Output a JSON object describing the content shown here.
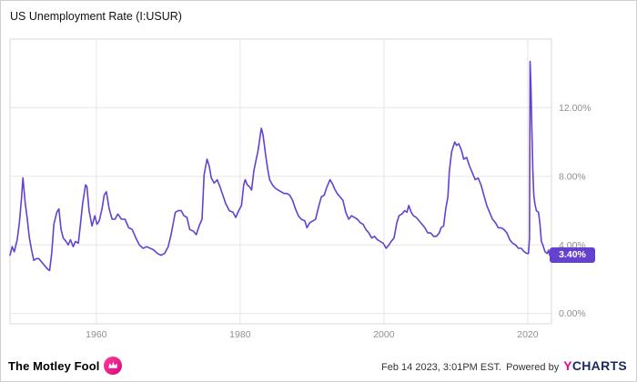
{
  "header": {
    "title": "US Unemployment Rate (I:USUR)"
  },
  "footer": {
    "brand": "The Motley Fool",
    "timestamp": "Feb 14 2023, 3:01PM EST.",
    "powered_by": "Powered by",
    "ycharts_y": "Y",
    "ycharts_rest": "CHARTS"
  },
  "colors": {
    "line": "#6442CF",
    "badge_bg": "#6442CF",
    "grid": "#e6e6e6",
    "plot_border": "#d9d9d9",
    "tick_text": "#8f8f8f",
    "brand_pink": "#d8067e",
    "ycharts_navy": "#1b2a5e"
  },
  "chart_data": {
    "type": "line",
    "title": "US Unemployment Rate (I:USUR)",
    "series_name": "US Unemployment Rate",
    "unit": "%",
    "xlabel": "",
    "ylabel": "",
    "xlim": [
      1948,
      2023.3
    ],
    "ylim": [
      -0.6,
      16
    ],
    "x_ticks": [
      1960,
      1980,
      2000,
      2020
    ],
    "x_tick_labels": [
      "1960",
      "1980",
      "2000",
      "2020"
    ],
    "y_ticks": [
      0,
      4,
      8,
      12
    ],
    "y_tick_labels": [
      "0.00%",
      "4.00%",
      "8.00%",
      "12.00%"
    ],
    "grid": true,
    "legend": "none",
    "line_color": "#6442CF",
    "last_value": 3.4,
    "last_value_label": "3.40%",
    "points": [
      [
        1948.0,
        3.4
      ],
      [
        1948.3,
        3.9
      ],
      [
        1948.6,
        3.6
      ],
      [
        1949.0,
        4.3
      ],
      [
        1949.3,
        5.3
      ],
      [
        1949.6,
        6.7
      ],
      [
        1949.8,
        7.9
      ],
      [
        1950.1,
        6.5
      ],
      [
        1950.4,
        5.5
      ],
      [
        1950.7,
        4.4
      ],
      [
        1951.0,
        3.7
      ],
      [
        1951.3,
        3.1
      ],
      [
        1951.7,
        3.2
      ],
      [
        1952.0,
        3.2
      ],
      [
        1952.4,
        3.0
      ],
      [
        1952.8,
        2.8
      ],
      [
        1953.2,
        2.6
      ],
      [
        1953.5,
        2.5
      ],
      [
        1953.8,
        3.5
      ],
      [
        1954.1,
        5.2
      ],
      [
        1954.5,
        5.9
      ],
      [
        1954.8,
        6.1
      ],
      [
        1955.1,
        4.9
      ],
      [
        1955.4,
        4.4
      ],
      [
        1955.8,
        4.2
      ],
      [
        1956.1,
        4.0
      ],
      [
        1956.4,
        4.3
      ],
      [
        1956.8,
        3.9
      ],
      [
        1957.1,
        4.2
      ],
      [
        1957.5,
        4.1
      ],
      [
        1957.8,
        5.2
      ],
      [
        1958.1,
        6.4
      ],
      [
        1958.5,
        7.5
      ],
      [
        1958.7,
        7.4
      ],
      [
        1959.0,
        6.0
      ],
      [
        1959.4,
        5.1
      ],
      [
        1959.8,
        5.7
      ],
      [
        1960.1,
        5.2
      ],
      [
        1960.4,
        5.4
      ],
      [
        1960.8,
        6.1
      ],
      [
        1961.1,
        6.9
      ],
      [
        1961.4,
        7.1
      ],
      [
        1961.8,
        6.1
      ],
      [
        1962.2,
        5.5
      ],
      [
        1962.6,
        5.5
      ],
      [
        1963.0,
        5.8
      ],
      [
        1963.5,
        5.5
      ],
      [
        1964.0,
        5.5
      ],
      [
        1964.5,
        5.0
      ],
      [
        1965.0,
        4.9
      ],
      [
        1965.5,
        4.4
      ],
      [
        1966.0,
        4.0
      ],
      [
        1966.5,
        3.8
      ],
      [
        1967.0,
        3.9
      ],
      [
        1967.5,
        3.8
      ],
      [
        1968.0,
        3.7
      ],
      [
        1968.5,
        3.5
      ],
      [
        1969.0,
        3.4
      ],
      [
        1969.5,
        3.5
      ],
      [
        1970.0,
        3.9
      ],
      [
        1970.4,
        4.6
      ],
      [
        1970.8,
        5.5
      ],
      [
        1971.0,
        5.9
      ],
      [
        1971.4,
        6.0
      ],
      [
        1971.8,
        6.0
      ],
      [
        1972.2,
        5.7
      ],
      [
        1972.6,
        5.6
      ],
      [
        1973.0,
        4.9
      ],
      [
        1973.5,
        4.8
      ],
      [
        1973.9,
        4.6
      ],
      [
        1974.3,
        5.1
      ],
      [
        1974.7,
        5.5
      ],
      [
        1975.0,
        8.1
      ],
      [
        1975.4,
        9.0
      ],
      [
        1975.7,
        8.6
      ],
      [
        1976.0,
        7.9
      ],
      [
        1976.4,
        7.6
      ],
      [
        1976.8,
        7.8
      ],
      [
        1977.2,
        7.4
      ],
      [
        1977.6,
        6.9
      ],
      [
        1978.0,
        6.4
      ],
      [
        1978.5,
        6.0
      ],
      [
        1979.0,
        5.9
      ],
      [
        1979.4,
        5.6
      ],
      [
        1979.8,
        6.0
      ],
      [
        1980.2,
        6.3
      ],
      [
        1980.5,
        7.5
      ],
      [
        1980.7,
        7.8
      ],
      [
        1981.0,
        7.5
      ],
      [
        1981.3,
        7.4
      ],
      [
        1981.6,
        7.2
      ],
      [
        1981.9,
        8.3
      ],
      [
        1982.2,
        8.9
      ],
      [
        1982.5,
        9.5
      ],
      [
        1982.8,
        10.4
      ],
      [
        1982.95,
        10.8
      ],
      [
        1983.2,
        10.4
      ],
      [
        1983.5,
        9.4
      ],
      [
        1983.8,
        8.5
      ],
      [
        1984.1,
        7.8
      ],
      [
        1984.5,
        7.5
      ],
      [
        1984.9,
        7.3
      ],
      [
        1985.3,
        7.2
      ],
      [
        1985.7,
        7.1
      ],
      [
        1986.1,
        7.0
      ],
      [
        1986.5,
        7.0
      ],
      [
        1986.9,
        6.9
      ],
      [
        1987.3,
        6.6
      ],
      [
        1987.7,
        6.1
      ],
      [
        1988.1,
        5.7
      ],
      [
        1988.5,
        5.5
      ],
      [
        1989.0,
        5.4
      ],
      [
        1989.3,
        5.0
      ],
      [
        1989.7,
        5.3
      ],
      [
        1990.1,
        5.4
      ],
      [
        1990.5,
        5.5
      ],
      [
        1990.9,
        6.2
      ],
      [
        1991.3,
        6.8
      ],
      [
        1991.7,
        6.9
      ],
      [
        1992.0,
        7.3
      ],
      [
        1992.5,
        7.8
      ],
      [
        1992.8,
        7.6
      ],
      [
        1993.1,
        7.3
      ],
      [
        1993.5,
        7.0
      ],
      [
        1993.9,
        6.8
      ],
      [
        1994.3,
        6.6
      ],
      [
        1994.7,
        5.9
      ],
      [
        1995.1,
        5.5
      ],
      [
        1995.5,
        5.7
      ],
      [
        1995.9,
        5.6
      ],
      [
        1996.3,
        5.5
      ],
      [
        1996.7,
        5.3
      ],
      [
        1997.1,
        5.2
      ],
      [
        1997.5,
        4.9
      ],
      [
        1997.9,
        4.7
      ],
      [
        1998.3,
        4.4
      ],
      [
        1998.7,
        4.5
      ],
      [
        1999.1,
        4.3
      ],
      [
        1999.5,
        4.2
      ],
      [
        1999.9,
        4.1
      ],
      [
        2000.3,
        3.8
      ],
      [
        2000.7,
        4.0
      ],
      [
        2001.0,
        4.2
      ],
      [
        2001.4,
        4.4
      ],
      [
        2001.8,
        5.3
      ],
      [
        2002.1,
        5.7
      ],
      [
        2002.5,
        5.8
      ],
      [
        2002.9,
        6.0
      ],
      [
        2003.2,
        5.9
      ],
      [
        2003.45,
        6.3
      ],
      [
        2003.8,
        5.9
      ],
      [
        2004.1,
        5.7
      ],
      [
        2004.5,
        5.6
      ],
      [
        2004.9,
        5.4
      ],
      [
        2005.3,
        5.2
      ],
      [
        2005.7,
        5.0
      ],
      [
        2006.1,
        4.7
      ],
      [
        2006.5,
        4.7
      ],
      [
        2006.9,
        4.5
      ],
      [
        2007.3,
        4.5
      ],
      [
        2007.7,
        4.7
      ],
      [
        2007.95,
        5.0
      ],
      [
        2008.3,
        5.1
      ],
      [
        2008.6,
        6.1
      ],
      [
        2008.9,
        6.8
      ],
      [
        2009.1,
        8.3
      ],
      [
        2009.4,
        9.4
      ],
      [
        2009.7,
        9.8
      ],
      [
        2009.85,
        10.0
      ],
      [
        2010.1,
        9.8
      ],
      [
        2010.4,
        9.9
      ],
      [
        2010.8,
        9.5
      ],
      [
        2011.1,
        9.0
      ],
      [
        2011.5,
        9.1
      ],
      [
        2011.9,
        8.6
      ],
      [
        2012.3,
        8.2
      ],
      [
        2012.7,
        7.8
      ],
      [
        2013.1,
        7.9
      ],
      [
        2013.5,
        7.5
      ],
      [
        2013.9,
        6.9
      ],
      [
        2014.3,
        6.3
      ],
      [
        2014.7,
        5.9
      ],
      [
        2015.1,
        5.5
      ],
      [
        2015.5,
        5.3
      ],
      [
        2015.9,
        5.0
      ],
      [
        2016.3,
        5.0
      ],
      [
        2016.7,
        4.9
      ],
      [
        2017.1,
        4.7
      ],
      [
        2017.5,
        4.3
      ],
      [
        2017.9,
        4.1
      ],
      [
        2018.3,
        4.0
      ],
      [
        2018.7,
        3.8
      ],
      [
        2019.1,
        3.8
      ],
      [
        2019.5,
        3.6
      ],
      [
        2019.9,
        3.5
      ],
      [
        2020.1,
        3.5
      ],
      [
        2020.25,
        4.4
      ],
      [
        2020.32,
        14.7
      ],
      [
        2020.45,
        13.2
      ],
      [
        2020.55,
        11.1
      ],
      [
        2020.7,
        8.4
      ],
      [
        2020.85,
        6.9
      ],
      [
        2021.0,
        6.4
      ],
      [
        2021.2,
        6.0
      ],
      [
        2021.5,
        5.9
      ],
      [
        2021.7,
        5.2
      ],
      [
        2021.9,
        4.2
      ],
      [
        2022.1,
        4.0
      ],
      [
        2022.4,
        3.6
      ],
      [
        2022.7,
        3.5
      ],
      [
        2022.9,
        3.7
      ],
      [
        2023.05,
        3.4
      ]
    ]
  }
}
